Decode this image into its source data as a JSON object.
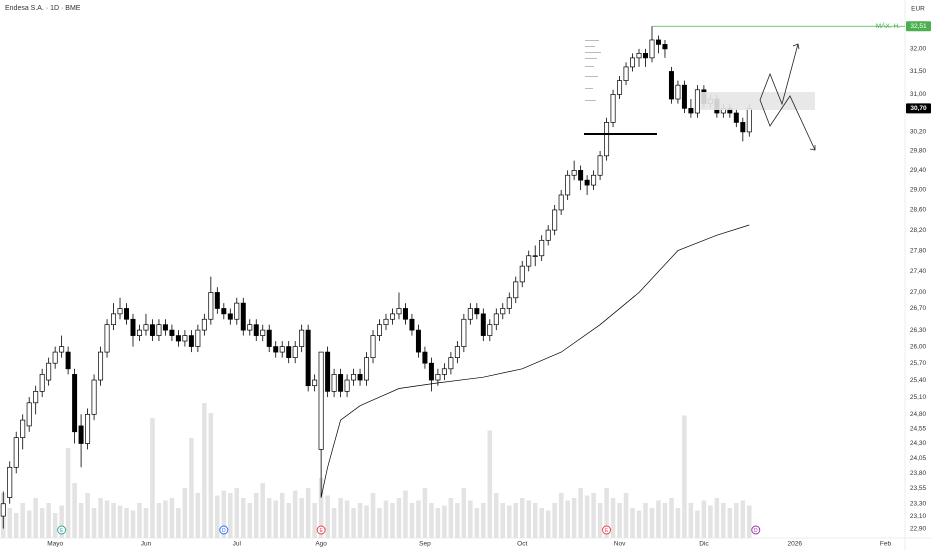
{
  "chart_data": {
    "type": "candlestick",
    "title": "Endesa S.A. · 1D · BME",
    "currency": "EUR",
    "log_scale": true,
    "up_color": "#ffffff",
    "down_color": "#000000",
    "volume_color": "#e3e3e3",
    "ma_color": "#000000",
    "ylim": [
      22.75,
      33.11
    ],
    "yticks": [
      {
        "value": 32.0,
        "label": "32,00"
      },
      {
        "value": 31.5,
        "label": "31,50"
      },
      {
        "value": 31.0,
        "label": "31,00"
      },
      {
        "value": 30.2,
        "label": "30,20"
      },
      {
        "value": 29.8,
        "label": "29,80"
      },
      {
        "value": 29.4,
        "label": "29,40"
      },
      {
        "value": 29.0,
        "label": "29,00"
      },
      {
        "value": 28.6,
        "label": "28,60"
      },
      {
        "value": 28.2,
        "label": "28,20"
      },
      {
        "value": 27.8,
        "label": "27,80"
      },
      {
        "value": 27.4,
        "label": "27,40"
      },
      {
        "value": 27.0,
        "label": "27,00"
      },
      {
        "value": 26.7,
        "label": "26,70"
      },
      {
        "value": 26.3,
        "label": "26,30"
      },
      {
        "value": 26.0,
        "label": "26,00"
      },
      {
        "value": 25.7,
        "label": "25,70"
      },
      {
        "value": 25.4,
        "label": "25,40"
      },
      {
        "value": 25.1,
        "label": "25,10"
      },
      {
        "value": 24.8,
        "label": "24,80"
      },
      {
        "value": 24.55,
        "label": "24,55"
      },
      {
        "value": 24.3,
        "label": "24,30"
      },
      {
        "value": 24.05,
        "label": "24,05"
      },
      {
        "value": 23.8,
        "label": "23,80"
      },
      {
        "value": 23.55,
        "label": "23,55"
      },
      {
        "value": 23.3,
        "label": "23,30"
      },
      {
        "value": 23.1,
        "label": "23,10"
      },
      {
        "value": 22.9,
        "label": "22,90"
      }
    ],
    "xlim": [
      -0.5,
      139
    ],
    "xticks": [
      {
        "value": 8,
        "label": "Mayo"
      },
      {
        "value": 22,
        "label": "Jun"
      },
      {
        "value": 36,
        "label": "Jul"
      },
      {
        "value": 49,
        "label": "Ago"
      },
      {
        "value": 65,
        "label": "Sep"
      },
      {
        "value": 80,
        "label": "Oct"
      },
      {
        "value": 95,
        "label": "Nov"
      },
      {
        "value": 108,
        "label": "Dic"
      },
      {
        "value": 122,
        "label": "2026"
      },
      {
        "value": 136,
        "label": "Feb"
      }
    ],
    "x": [
      0,
      1,
      2,
      3,
      4,
      5,
      6,
      7,
      8,
      9,
      10,
      11,
      12,
      13,
      14,
      15,
      16,
      17,
      18,
      19,
      20,
      21,
      22,
      23,
      24,
      25,
      26,
      27,
      28,
      29,
      30,
      31,
      32,
      33,
      34,
      35,
      36,
      37,
      38,
      39,
      40,
      41,
      42,
      43,
      44,
      45,
      46,
      47,
      48,
      49,
      50,
      51,
      52,
      53,
      54,
      55,
      56,
      57,
      58,
      59,
      60,
      61,
      62,
      63,
      64,
      65,
      66,
      67,
      68,
      69,
      70,
      71,
      72,
      73,
      74,
      75,
      76,
      77,
      78,
      79,
      80,
      81,
      82,
      83,
      84,
      85,
      86,
      87,
      88,
      89,
      90,
      91,
      92,
      93,
      94,
      95,
      96,
      97,
      98,
      99,
      100,
      101,
      102,
      103,
      104,
      105,
      106,
      107,
      108,
      109,
      110,
      111,
      112,
      113,
      114,
      115
    ],
    "candles": [
      [
        23.1,
        23.5,
        22.9,
        23.3
      ],
      [
        23.4,
        24.0,
        23.3,
        23.9
      ],
      [
        23.9,
        24.5,
        23.8,
        24.4
      ],
      [
        24.4,
        24.8,
        24.2,
        24.7
      ],
      [
        24.6,
        25.1,
        24.5,
        25.0
      ],
      [
        25.0,
        25.3,
        24.8,
        25.2
      ],
      [
        25.2,
        25.6,
        25.1,
        25.5
      ],
      [
        25.4,
        25.8,
        25.3,
        25.7
      ],
      [
        25.7,
        26.0,
        25.6,
        25.9
      ],
      [
        25.9,
        26.2,
        25.8,
        26.0
      ],
      [
        25.9,
        26.0,
        25.5,
        25.6
      ],
      [
        25.5,
        25.6,
        24.3,
        24.5
      ],
      [
        24.6,
        24.8,
        23.9,
        24.3
      ],
      [
        24.3,
        24.9,
        24.2,
        24.8
      ],
      [
        24.8,
        25.5,
        24.7,
        25.4
      ],
      [
        25.4,
        26.0,
        25.3,
        25.9
      ],
      [
        25.9,
        26.5,
        25.8,
        26.4
      ],
      [
        26.4,
        26.8,
        26.3,
        26.6
      ],
      [
        26.6,
        26.9,
        26.5,
        26.7
      ],
      [
        26.7,
        26.8,
        26.4,
        26.5
      ],
      [
        26.5,
        26.6,
        26.0,
        26.2
      ],
      [
        26.2,
        26.4,
        26.1,
        26.3
      ],
      [
        26.3,
        26.6,
        26.2,
        26.4
      ],
      [
        26.4,
        26.5,
        26.1,
        26.2
      ],
      [
        26.2,
        26.5,
        26.1,
        26.4
      ],
      [
        26.4,
        26.5,
        26.2,
        26.3
      ],
      [
        26.3,
        26.4,
        26.1,
        26.2
      ],
      [
        26.2,
        26.3,
        26.0,
        26.1
      ],
      [
        26.1,
        26.3,
        26.0,
        26.2
      ],
      [
        26.2,
        26.3,
        25.9,
        26.0
      ],
      [
        26.0,
        26.4,
        25.9,
        26.3
      ],
      [
        26.3,
        26.6,
        26.2,
        26.5
      ],
      [
        26.5,
        27.3,
        26.4,
        27.0
      ],
      [
        27.0,
        27.1,
        26.6,
        26.7
      ],
      [
        26.7,
        26.8,
        26.5,
        26.6
      ],
      [
        26.6,
        26.7,
        26.4,
        26.5
      ],
      [
        26.5,
        26.9,
        26.4,
        26.8
      ],
      [
        26.8,
        26.9,
        26.2,
        26.3
      ],
      [
        26.3,
        26.5,
        26.2,
        26.4
      ],
      [
        26.4,
        26.5,
        26.1,
        26.2
      ],
      [
        26.2,
        26.4,
        26.1,
        26.3
      ],
      [
        26.3,
        26.4,
        25.9,
        26.0
      ],
      [
        26.0,
        26.1,
        25.8,
        25.9
      ],
      [
        25.9,
        26.1,
        25.8,
        26.0
      ],
      [
        26.0,
        26.1,
        25.7,
        25.8
      ],
      [
        25.8,
        26.1,
        25.7,
        26.0
      ],
      [
        26.0,
        26.4,
        25.9,
        26.3
      ],
      [
        26.3,
        26.4,
        25.2,
        25.3
      ],
      [
        25.3,
        25.5,
        25.2,
        25.4
      ],
      [
        24.2,
        25.9,
        23.4,
        25.9
      ],
      [
        25.9,
        26.0,
        25.1,
        25.2
      ],
      [
        25.2,
        25.6,
        25.1,
        25.5
      ],
      [
        25.5,
        25.6,
        25.1,
        25.2
      ],
      [
        25.2,
        25.5,
        25.1,
        25.4
      ],
      [
        25.4,
        25.6,
        25.3,
        25.5
      ],
      [
        25.5,
        25.6,
        25.3,
        25.4
      ],
      [
        25.4,
        25.9,
        25.3,
        25.8
      ],
      [
        25.8,
        26.3,
        25.7,
        26.2
      ],
      [
        26.2,
        26.5,
        26.1,
        26.4
      ],
      [
        26.4,
        26.6,
        26.3,
        26.5
      ],
      [
        26.5,
        26.7,
        26.4,
        26.6
      ],
      [
        26.6,
        27.0,
        26.5,
        26.7
      ],
      [
        26.7,
        26.8,
        26.4,
        26.5
      ],
      [
        26.5,
        26.6,
        26.2,
        26.3
      ],
      [
        26.3,
        26.4,
        25.8,
        25.9
      ],
      [
        25.9,
        26.0,
        25.6,
        25.7
      ],
      [
        25.7,
        25.8,
        25.2,
        25.4
      ],
      [
        25.4,
        25.6,
        25.3,
        25.5
      ],
      [
        25.5,
        25.7,
        25.4,
        25.6
      ],
      [
        25.6,
        25.9,
        25.5,
        25.8
      ],
      [
        25.8,
        26.1,
        25.7,
        26.0
      ],
      [
        26.0,
        26.6,
        25.9,
        26.5
      ],
      [
        26.5,
        26.8,
        26.4,
        26.7
      ],
      [
        26.7,
        26.8,
        26.5,
        26.6
      ],
      [
        26.6,
        26.7,
        26.1,
        26.2
      ],
      [
        26.2,
        26.5,
        26.1,
        26.4
      ],
      [
        26.4,
        26.7,
        26.3,
        26.6
      ],
      [
        26.6,
        26.8,
        26.5,
        26.7
      ],
      [
        26.7,
        27.0,
        26.6,
        26.9
      ],
      [
        26.9,
        27.3,
        26.8,
        27.2
      ],
      [
        27.2,
        27.6,
        27.1,
        27.5
      ],
      [
        27.5,
        27.8,
        27.4,
        27.7
      ],
      [
        27.7,
        27.9,
        27.5,
        27.7
      ],
      [
        27.7,
        28.1,
        27.6,
        28.0
      ],
      [
        28.0,
        28.3,
        27.9,
        28.2
      ],
      [
        28.2,
        28.7,
        28.1,
        28.6
      ],
      [
        28.6,
        29.0,
        28.5,
        28.9
      ],
      [
        28.9,
        29.4,
        28.8,
        29.3
      ],
      [
        29.3,
        29.6,
        29.2,
        29.4
      ],
      [
        29.4,
        29.5,
        29.0,
        29.2
      ],
      [
        29.2,
        29.3,
        28.9,
        29.1
      ],
      [
        29.1,
        29.4,
        29.0,
        29.3
      ],
      [
        29.3,
        29.8,
        29.2,
        29.7
      ],
      [
        29.7,
        30.5,
        29.6,
        30.4
      ],
      [
        30.4,
        31.1,
        30.3,
        31.0
      ],
      [
        31.0,
        31.4,
        30.9,
        31.3
      ],
      [
        31.3,
        31.7,
        31.2,
        31.6
      ],
      [
        31.6,
        31.9,
        31.5,
        31.8
      ],
      [
        31.8,
        32.0,
        31.6,
        31.9
      ],
      [
        31.9,
        32.0,
        31.6,
        31.8
      ],
      [
        31.8,
        32.51,
        31.7,
        32.2
      ],
      [
        32.2,
        32.3,
        31.9,
        32.1
      ],
      [
        32.1,
        32.2,
        31.8,
        32.0
      ],
      [
        31.5,
        31.6,
        30.8,
        30.9
      ],
      [
        30.9,
        31.3,
        30.8,
        31.2
      ],
      [
        31.2,
        31.3,
        30.6,
        30.7
      ],
      [
        30.7,
        30.9,
        30.5,
        30.6
      ],
      [
        30.6,
        31.2,
        30.5,
        31.1
      ],
      [
        31.1,
        31.2,
        30.7,
        30.8
      ],
      [
        30.8,
        31.0,
        30.7,
        30.9
      ],
      [
        30.9,
        31.0,
        30.5,
        30.6
      ],
      [
        30.6,
        30.8,
        30.5,
        30.7
      ],
      [
        30.7,
        30.8,
        30.5,
        30.6
      ],
      [
        30.6,
        30.7,
        30.3,
        30.4
      ],
      [
        30.4,
        30.5,
        30.0,
        30.2
      ],
      [
        30.2,
        30.8,
        30.1,
        30.7
      ]
    ],
    "vlim": [
      0,
      280
    ],
    "volumes": [
      90,
      60,
      50,
      70,
      55,
      80,
      60,
      70,
      50,
      65,
      180,
      110,
      70,
      90,
      60,
      80,
      75,
      70,
      65,
      60,
      55,
      70,
      60,
      240,
      70,
      75,
      80,
      60,
      100,
      200,
      90,
      270,
      250,
      85,
      95,
      90,
      100,
      80,
      70,
      90,
      110,
      80,
      75,
      90,
      70,
      95,
      80,
      100,
      70,
      120,
      85,
      60,
      80,
      75,
      60,
      70,
      65,
      90,
      60,
      75,
      70,
      80,
      95,
      70,
      75,
      100,
      70,
      60,
      65,
      80,
      70,
      100,
      75,
      60,
      70,
      215,
      90,
      70,
      65,
      70,
      80,
      75,
      70,
      60,
      55,
      70,
      90,
      75,
      80,
      100,
      85,
      90,
      70,
      100,
      80,
      70,
      90,
      60,
      55,
      70,
      60,
      75,
      70,
      80,
      60,
      245,
      70,
      55,
      75,
      65,
      80,
      70,
      60,
      70,
      75,
      65
    ],
    "ma": {
      "x": [
        49,
        50,
        52,
        55,
        61,
        67,
        74,
        80,
        86,
        92,
        98,
        104,
        110,
        115
      ],
      "values": [
        23.4,
        23.9,
        24.7,
        24.95,
        25.25,
        25.35,
        25.45,
        25.6,
        25.9,
        26.4,
        27.0,
        27.8,
        28.1,
        28.3
      ]
    },
    "events": [
      {
        "x": 9,
        "label": "E",
        "color": "#26a69a"
      },
      {
        "x": 34,
        "label": "D",
        "color": "#2962ff"
      },
      {
        "x": 49,
        "label": "E",
        "color": "#f23645"
      },
      {
        "x": 93,
        "label": "E",
        "color": "#f23645"
      },
      {
        "x": 116,
        "label": "D",
        "color": "#9c27b0"
      }
    ],
    "max_marker": {
      "x": 100,
      "value": 32.51,
      "label": "32,51",
      "text": "MÁX. H.",
      "color": "#4caf50"
    },
    "last_price": {
      "value": 30.7,
      "label": "30,70",
      "color": "#000000"
    }
  }
}
